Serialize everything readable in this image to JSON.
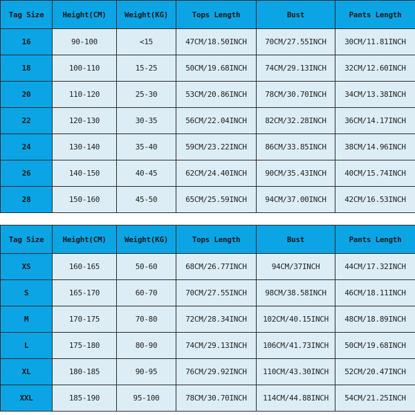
{
  "headers": [
    "Tag Size",
    "Height(CM)",
    "Weight(KG)",
    "Tops Length",
    "Bust",
    "Pants Length"
  ],
  "kids_table": [
    [
      "16",
      "90-100",
      "<15",
      "47CM/18.50INCH",
      "70CM/27.55INCH",
      "30CM/11.81INCH"
    ],
    [
      "18",
      "100-110",
      "15-25",
      "50CM/19.68INCH",
      "74CM/29.13INCH",
      "32CM/12.60INCH"
    ],
    [
      "20",
      "110-120",
      "25-30",
      "53CM/20.86INCH",
      "78CM/30.70INCH",
      "34CM/13.38INCH"
    ],
    [
      "22",
      "120-130",
      "30-35",
      "56CM/22.04INCH",
      "82CM/32.28INCH",
      "36CM/14.17INCH"
    ],
    [
      "24",
      "130-140",
      "35-40",
      "59CM/23.22INCH",
      "86CM/33.85INCH",
      "38CM/14.96INCH"
    ],
    [
      "26",
      "140-150",
      "40-45",
      "62CM/24.40INCH",
      "90CM/35.43INCH",
      "40CM/15.74INCH"
    ],
    [
      "28",
      "150-160",
      "45-50",
      "65CM/25.59INCH",
      "94CM/37.00INCH",
      "42CM/16.53INCH"
    ]
  ],
  "adult_table": [
    [
      "XS",
      "160-165",
      "50-60",
      "68CM/26.77INCH",
      "94CM/37INCH",
      "44CM/17.32INCH"
    ],
    [
      "S",
      "165-170",
      "60-70",
      "70CM/27.55INCH",
      "98CM/38.58INCH",
      "46CM/18.11INCH"
    ],
    [
      "M",
      "170-175",
      "70-80",
      "72CM/28.34INCH",
      "102CM/40.15INCH",
      "48CM/18.89INCH"
    ],
    [
      "L",
      "175-180",
      "80-90",
      "74CM/29.13INCH",
      "106CM/41.73INCH",
      "50CM/19.68INCH"
    ],
    [
      "XL",
      "180-185",
      "90-95",
      "76CM/29.92INCH",
      "110CM/43.30INCH",
      "52CM/20.47INCH"
    ],
    [
      "XXL",
      "185-190",
      "95-100",
      "78CM/30.70INCH",
      "114CM/44.88INCH",
      "54CM/21.25INCH"
    ]
  ],
  "colors": {
    "header": "#0ba5e6",
    "cell": "#dcedf5",
    "border": "#2a2a2a"
  }
}
